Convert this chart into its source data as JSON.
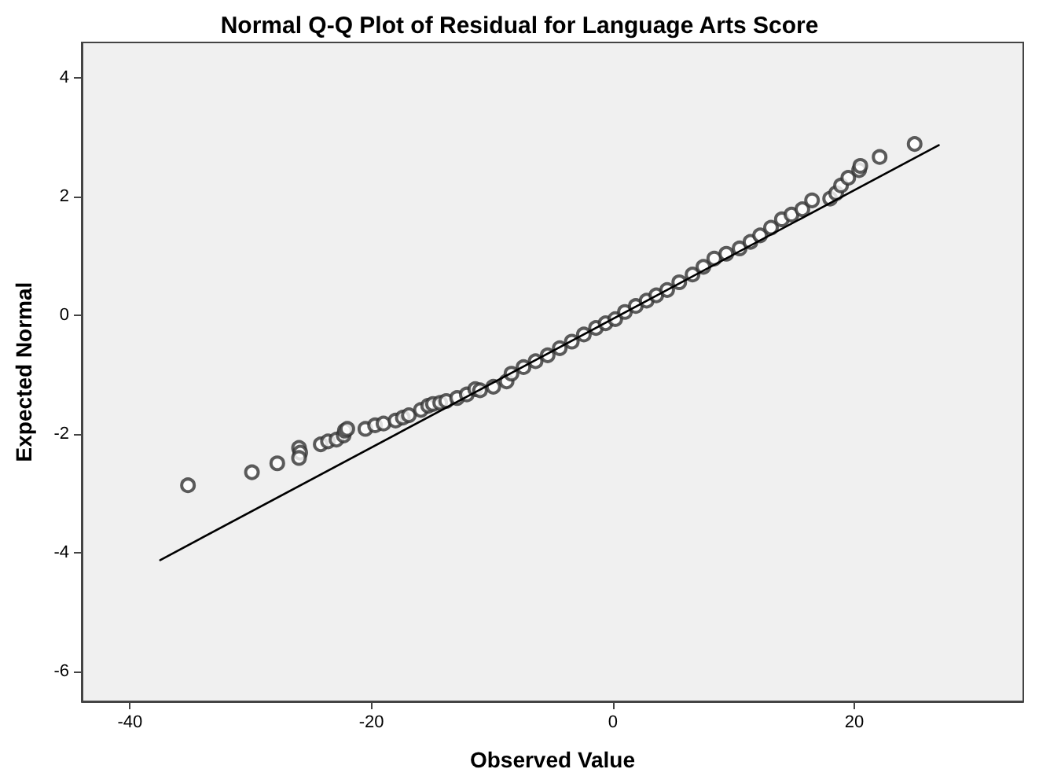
{
  "chart_data": {
    "type": "scatter",
    "title": "Normal Q-Q Plot of Residual for Language Arts Score",
    "xlabel": "Observed Value",
    "ylabel": "Expected Normal",
    "xlim": [
      -44,
      34
    ],
    "xticks": [
      -40,
      -20,
      0,
      20
    ],
    "ylim": [
      -6.5,
      4.6
    ],
    "yticks": [
      -6,
      -4,
      -2,
      0,
      2,
      4
    ],
    "grid": false,
    "marker": "circle",
    "series": [
      {
        "color": "#333333",
        "x": [
          -35.2,
          -29.9,
          -27.8,
          -26.0,
          -25.9,
          -26.0,
          -24.2,
          -23.6,
          -22.9,
          -22.3,
          -22.2,
          -22.0,
          -20.5,
          -19.7,
          -19.0,
          -18.0,
          -17.4,
          -16.9,
          -15.9,
          -15.3,
          -14.9,
          -14.3,
          -13.8,
          -12.9,
          -12.1,
          -11.4,
          -11.0,
          -9.9,
          -8.8,
          -8.4,
          -7.4,
          -6.4,
          -5.4,
          -4.4,
          -3.4,
          -2.4,
          -1.4,
          -0.6,
          0.2,
          1.0,
          1.9,
          2.8,
          3.6,
          4.5,
          5.5,
          6.6,
          7.5,
          8.4,
          9.4,
          10.5,
          11.4,
          12.2,
          13.1,
          14.0,
          14.8,
          15.7,
          16.5,
          18.0,
          18.5,
          18.9,
          19.5,
          20.4,
          20.5,
          22.1,
          25.0
        ],
        "values": [
          -2.86,
          -2.64,
          -2.49,
          -2.23,
          -2.31,
          -2.4,
          -2.17,
          -2.12,
          -2.09,
          -2.02,
          -1.94,
          -1.91,
          -1.91,
          -1.85,
          -1.82,
          -1.77,
          -1.72,
          -1.68,
          -1.59,
          -1.52,
          -1.49,
          -1.47,
          -1.44,
          -1.39,
          -1.33,
          -1.24,
          -1.26,
          -1.2,
          -1.11,
          -0.98,
          -0.87,
          -0.77,
          -0.67,
          -0.55,
          -0.44,
          -0.32,
          -0.21,
          -0.13,
          -0.06,
          0.06,
          0.16,
          0.25,
          0.34,
          0.43,
          0.56,
          0.69,
          0.82,
          0.96,
          1.04,
          1.13,
          1.24,
          1.35,
          1.48,
          1.62,
          1.7,
          1.79,
          1.94,
          1.97,
          2.06,
          2.19,
          2.32,
          2.45,
          2.52,
          2.67,
          2.89
        ]
      },
      {
        "type": "line",
        "color": "#000000",
        "marker": "none",
        "line_style": "solid",
        "x": [
          -37.5,
          27.0
        ],
        "values": [
          -4.12,
          2.87
        ]
      }
    ]
  }
}
